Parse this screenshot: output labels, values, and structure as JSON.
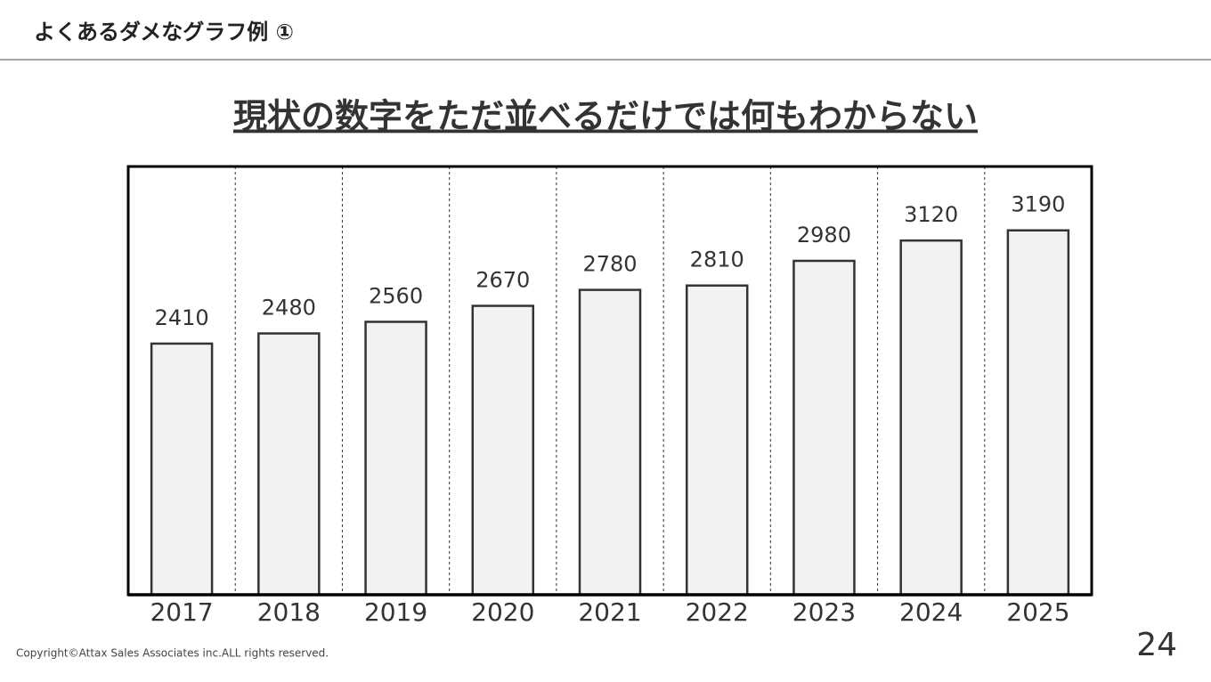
{
  "header": {
    "title": "よくあるダメなグラフ例 ①"
  },
  "chart_data": {
    "type": "bar",
    "title": "現状の数字をただ並べるだけでは何もわからない",
    "categories": [
      "2017",
      "2018",
      "2019",
      "2020",
      "2021",
      "2022",
      "2023",
      "2024",
      "2025"
    ],
    "values": [
      2410,
      2480,
      2560,
      2670,
      2780,
      2810,
      2980,
      3120,
      3190
    ],
    "color": "#f2f2f2",
    "ylim": [
      680,
      3630
    ]
  },
  "footer": {
    "copyright": "Copyright©Attax Sales Associates inc.ALL rights reserved.",
    "page_number": "24"
  }
}
